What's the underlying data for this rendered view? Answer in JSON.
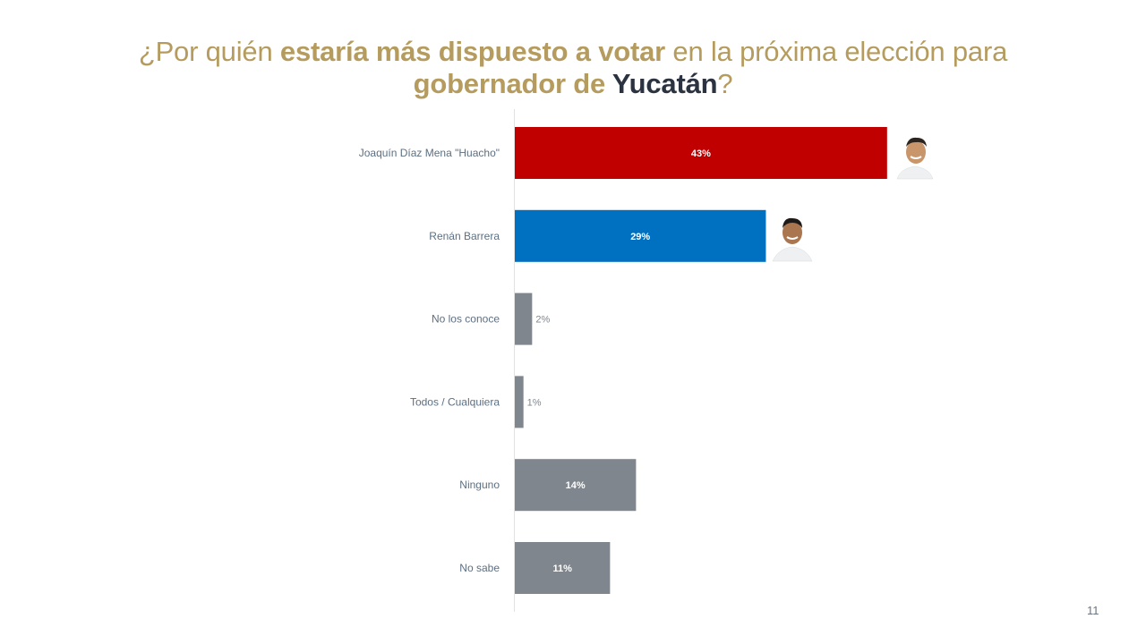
{
  "title": {
    "part1": "¿Por quién ",
    "part2": "estaría más dispuesto a votar",
    "part3": " en la próxima elección para",
    "part4": "gobernador de ",
    "part5": "Yucatán",
    "part6": "?"
  },
  "page_number": "11",
  "colors": {
    "title_gold": "#b59c5e",
    "title_dark": "#2b3340",
    "red": "#c00000",
    "blue": "#0070c0",
    "gray": "#7f868d"
  },
  "chart_data": {
    "type": "bar",
    "orientation": "horizontal",
    "categories": [
      "Joaquín Díaz Mena \"Huacho\"",
      "Renán Barrera",
      "No los conoce",
      "Todos / Cualquiera",
      "Ninguno",
      "No sabe"
    ],
    "values": [
      43,
      29,
      2,
      1,
      14,
      11
    ],
    "value_labels": [
      "43%",
      "29%",
      "2%",
      "1%",
      "14%",
      "11%"
    ],
    "bar_colors": [
      "#c00000",
      "#0070c0",
      "#7f868d",
      "#7f868d",
      "#7f868d",
      "#7f868d"
    ],
    "xlim": [
      0,
      50
    ],
    "grid": false,
    "legend": "none"
  }
}
